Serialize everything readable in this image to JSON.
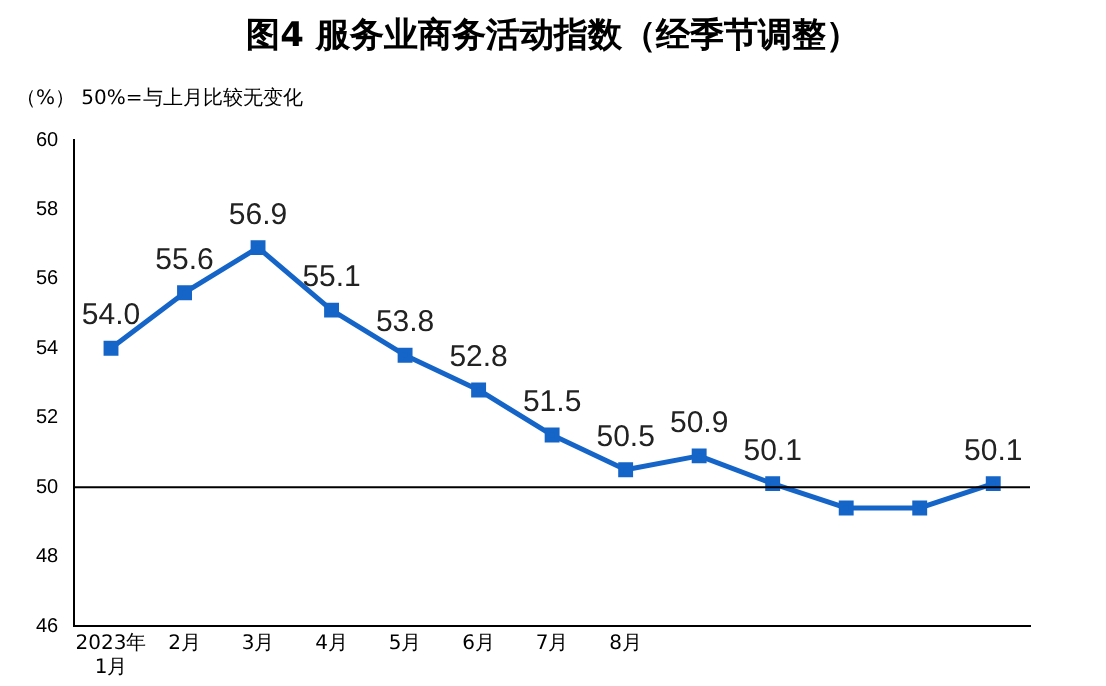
{
  "chart_data": {
    "type": "line",
    "title": "图4 服务业商务活动指数（经季节调整）",
    "annotations": [
      "（%） 50%=与上月比较无变化"
    ],
    "categories": [
      "2023年1月",
      "2月",
      "3月",
      "4月",
      "5月",
      "6月",
      "7月",
      "8月",
      null,
      null,
      null,
      null,
      null
    ],
    "series": [
      {
        "color": "#1565c8",
        "values": [
          54.0,
          55.6,
          56.9,
          55.1,
          53.8,
          52.8,
          51.5,
          50.5,
          50.9,
          50.1,
          49.4,
          49.4,
          50.1
        ],
        "value_labels": [
          "54.0",
          "55.6",
          "56.9",
          "55.1",
          "53.8",
          "52.8",
          "51.5",
          "50.5",
          "50.9",
          "50.1",
          null,
          null,
          "50.1"
        ]
      }
    ],
    "ylim": [
      46,
      60
    ],
    "yticks": [
      46,
      48,
      50,
      52,
      54,
      56,
      58,
      60
    ],
    "grid": false,
    "legend": false,
    "marker": "square",
    "line_style": "solid",
    "ref_lines": [
      {
        "axis": "y",
        "value": 50
      }
    ]
  }
}
